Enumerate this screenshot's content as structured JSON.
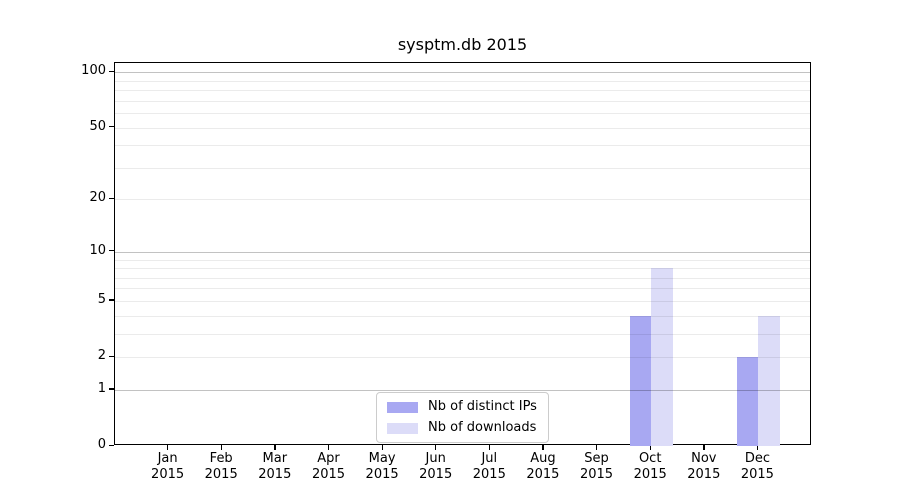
{
  "chart_data": {
    "type": "bar",
    "title": "sysptm.db 2015",
    "categories": [
      "Jan",
      "Feb",
      "Mar",
      "Apr",
      "May",
      "Jun",
      "Jul",
      "Aug",
      "Sep",
      "Oct",
      "Nov",
      "Dec"
    ],
    "x_year_label": "2015",
    "series": [
      {
        "name": "Nb of distinct IPs",
        "slug": "distinct-ips",
        "color": "#a8a8f2",
        "values": [
          0,
          0,
          0,
          0,
          0,
          0,
          0,
          0,
          0,
          4,
          0,
          2
        ]
      },
      {
        "name": "Nb of downloads",
        "slug": "downloads",
        "color": "#dcdcf8",
        "values": [
          0,
          0,
          0,
          0,
          0,
          0,
          0,
          0,
          0,
          8,
          0,
          4
        ]
      }
    ],
    "y_scale": "log1p",
    "ylim": [
      0,
      112
    ],
    "y_ticks": [
      0,
      1,
      2,
      5,
      10,
      20,
      50,
      100
    ],
    "grid_major_values": [
      1,
      10,
      100
    ],
    "grid_minor_values": [
      2,
      3,
      4,
      5,
      6,
      7,
      8,
      9,
      20,
      30,
      40,
      50,
      60,
      70,
      80,
      90
    ],
    "grid_on": true,
    "legend_position": "lower-center",
    "colors": {
      "grid_major": "rgba(0,0,0,0.24)",
      "grid_minor": "rgba(0,0,0,0.08)",
      "spine": "#000000",
      "background": "#ffffff"
    }
  }
}
